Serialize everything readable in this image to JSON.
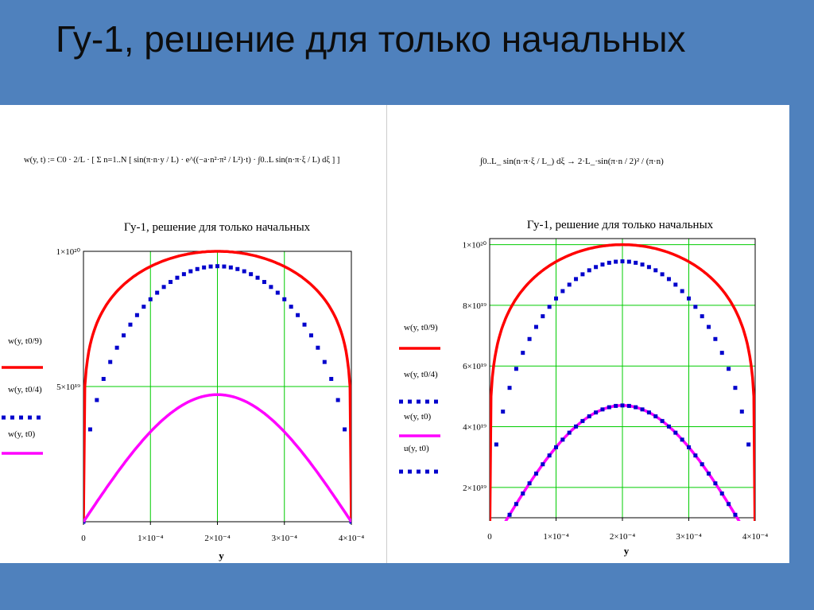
{
  "slide": {
    "title": "Гу-1, решение для только начальных"
  },
  "formulas": {
    "left": "w(y, t) := C0 · 2/L · [ Σ n=1..N [ sin(π·n·y / L) · e^((−a·n²·π² / L²)·t) · ∫0..L sin(n·π·ξ / L) dξ ] ]",
    "right": "∫0..L_ sin(n·π·ξ / L_) dξ → 2·L_·sin(π·n / 2)² / (π·n)"
  },
  "chart_data": [
    {
      "type": "line",
      "title": "Гу-1, решение для только начальных",
      "xlabel": "y",
      "xlim": [
        0,
        0.0004
      ],
      "ylim": [
        0,
        1e+20
      ],
      "grid": true,
      "x_ticks": [
        "0",
        "1×10⁻⁴",
        "2×10⁻⁴",
        "3×10⁻⁴",
        "4×10⁻⁴"
      ],
      "y_ticks": [
        {
          "value": 1e+20,
          "label": "1×10²⁰"
        },
        {
          "value": 5e+19,
          "label": "5×10¹⁹"
        }
      ],
      "series": [
        {
          "name": "w(y, t0/9)",
          "color": "#ff0000",
          "style": "solid",
          "peak": 1e+20,
          "flat": 6
        },
        {
          "name": "w(y, t0/4)",
          "color": "#0000cc",
          "style": "dotted",
          "peak": 9.45e+19,
          "flat": 2.5
        },
        {
          "name": "w(y, t0)",
          "color": "#ff00ff",
          "style": "solid",
          "peak": 4.7e+19,
          "flat": 1
        }
      ]
    },
    {
      "type": "line",
      "title": "Гу-1, решение для только начальных",
      "xlabel": "y",
      "xlim": [
        0,
        0.0004
      ],
      "ylim": [
        1e+19,
        1.02e+20
      ],
      "grid": true,
      "x_ticks": [
        "0",
        "1×10⁻⁴",
        "2×10⁻⁴",
        "3×10⁻⁴",
        "4×10⁻⁴"
      ],
      "y_ticks": [
        {
          "value": 1e+20,
          "label": "1×10²⁰"
        },
        {
          "value": 8e+19,
          "label": "8×10¹⁹"
        },
        {
          "value": 6e+19,
          "label": "6×10¹⁹"
        },
        {
          "value": 4e+19,
          "label": "4×10¹⁹"
        },
        {
          "value": 2e+19,
          "label": "2×10¹⁹"
        }
      ],
      "series": [
        {
          "name": "w(y, t0/9)",
          "color": "#ff0000",
          "style": "solid",
          "peak": 1e+20,
          "flat": 6
        },
        {
          "name": "w(y, t0/4)",
          "color": "#0000cc",
          "style": "dotted",
          "peak": 9.45e+19,
          "flat": 2.5
        },
        {
          "name": "w(y, t0)",
          "color": "#ff00ff",
          "style": "solid",
          "peak": 4.7e+19,
          "flat": 1
        },
        {
          "name": "u(y, t0)",
          "color": "#0000cc",
          "style": "dotted",
          "peak": 4.7e+19,
          "flat": 1
        }
      ]
    }
  ]
}
